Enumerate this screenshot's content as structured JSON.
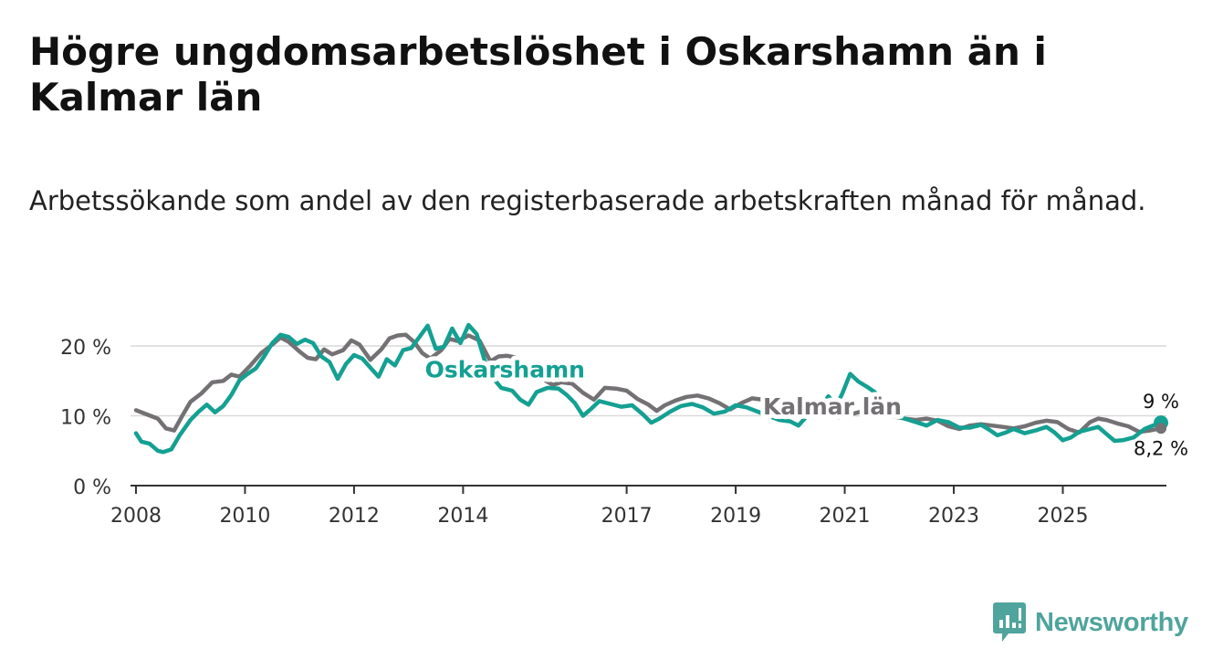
{
  "title": "Högre ungdomsarbetslöshet i Oskarshamn än i Kalmar län",
  "subtitle": "Arbetssökande som andel av den registerbaserade arbetskraften månad för månad.",
  "brand": {
    "name": "Newsworthy",
    "color": "#4fa49d",
    "icon": "bar-chart-logo-icon"
  },
  "chart_data": {
    "type": "line",
    "title": "Högre ungdomsarbetslöshet i Oskarshamn än i Kalmar län",
    "xlabel": "",
    "ylabel": "",
    "xlim": [
      2007.9,
      2026.9
    ],
    "ylim": [
      0,
      20
    ],
    "grid": true,
    "x_ticks": [
      {
        "value": 2008,
        "label": "2008"
      },
      {
        "value": 2010,
        "label": "2010"
      },
      {
        "value": 2012,
        "label": "2012"
      },
      {
        "value": 2014,
        "label": "2014"
      },
      {
        "value": 2017,
        "label": "2017"
      },
      {
        "value": 2019,
        "label": "2019"
      },
      {
        "value": 2021,
        "label": "2021"
      },
      {
        "value": 2023,
        "label": "2023"
      },
      {
        "value": 2025,
        "label": "2025"
      }
    ],
    "y_ticks": [
      {
        "value": 0,
        "label": "0 %"
      },
      {
        "value": 10,
        "label": "10 %"
      },
      {
        "value": 20,
        "label": "20 %"
      }
    ],
    "series": [
      {
        "name": "Kalmar län",
        "label": "Kalmar län",
        "color": "#747174",
        "end_label": "8,2 %",
        "points": [
          [
            2008.0,
            10.8
          ],
          [
            2008.2,
            10.2
          ],
          [
            2008.4,
            9.6
          ],
          [
            2008.55,
            8.2
          ],
          [
            2008.7,
            7.9
          ],
          [
            2008.85,
            10.0
          ],
          [
            2009.0,
            12.0
          ],
          [
            2009.2,
            13.2
          ],
          [
            2009.4,
            14.8
          ],
          [
            2009.6,
            15.0
          ],
          [
            2009.75,
            15.9
          ],
          [
            2009.9,
            15.6
          ],
          [
            2010.1,
            17.2
          ],
          [
            2010.3,
            19.0
          ],
          [
            2010.5,
            20.2
          ],
          [
            2010.65,
            21.2
          ],
          [
            2010.8,
            20.6
          ],
          [
            2011.0,
            19.2
          ],
          [
            2011.15,
            18.3
          ],
          [
            2011.3,
            18.1
          ],
          [
            2011.45,
            19.5
          ],
          [
            2011.6,
            18.8
          ],
          [
            2011.8,
            19.4
          ],
          [
            2011.95,
            20.8
          ],
          [
            2012.1,
            20.2
          ],
          [
            2012.3,
            18.0
          ],
          [
            2012.5,
            19.5
          ],
          [
            2012.65,
            21.1
          ],
          [
            2012.8,
            21.5
          ],
          [
            2012.95,
            21.6
          ],
          [
            2013.1,
            20.6
          ],
          [
            2013.25,
            19.0
          ],
          [
            2013.4,
            18.2
          ],
          [
            2013.6,
            19.4
          ],
          [
            2013.75,
            21.0
          ],
          [
            2013.9,
            20.7
          ],
          [
            2014.1,
            21.5
          ],
          [
            2014.3,
            20.8
          ],
          [
            2014.5,
            17.8
          ],
          [
            2014.65,
            18.5
          ],
          [
            2014.8,
            18.6
          ],
          [
            2015.0,
            18.3
          ],
          [
            2015.2,
            16.5
          ],
          [
            2015.35,
            15.6
          ],
          [
            2015.5,
            15.1
          ],
          [
            2015.65,
            14.4
          ],
          [
            2015.8,
            14.8
          ],
          [
            2016.0,
            14.6
          ],
          [
            2016.2,
            13.3
          ],
          [
            2016.4,
            12.3
          ],
          [
            2016.6,
            14.0
          ],
          [
            2016.8,
            13.9
          ],
          [
            2017.0,
            13.6
          ],
          [
            2017.2,
            12.4
          ],
          [
            2017.4,
            11.6
          ],
          [
            2017.55,
            10.7
          ],
          [
            2017.7,
            11.5
          ],
          [
            2017.9,
            12.2
          ],
          [
            2018.1,
            12.7
          ],
          [
            2018.3,
            12.9
          ],
          [
            2018.5,
            12.5
          ],
          [
            2018.7,
            11.8
          ],
          [
            2018.9,
            10.9
          ],
          [
            2019.1,
            11.8
          ],
          [
            2019.3,
            12.5
          ],
          [
            2019.5,
            12.3
          ],
          [
            2019.7,
            11.3
          ],
          [
            2019.9,
            10.6
          ],
          [
            2020.1,
            10.3
          ],
          [
            2020.3,
            10.0
          ],
          [
            2020.5,
            9.9
          ],
          [
            2020.7,
            10.1
          ],
          [
            2020.9,
            9.8
          ],
          [
            2021.1,
            10.2
          ],
          [
            2021.3,
            10.6
          ],
          [
            2021.5,
            11.0
          ],
          [
            2021.7,
            10.3
          ],
          [
            2021.9,
            9.9
          ],
          [
            2022.1,
            9.6
          ],
          [
            2022.3,
            9.4
          ],
          [
            2022.5,
            9.6
          ],
          [
            2022.7,
            9.3
          ],
          [
            2022.9,
            8.5
          ],
          [
            2023.1,
            8.1
          ],
          [
            2023.3,
            8.6
          ],
          [
            2023.5,
            8.8
          ],
          [
            2023.7,
            8.6
          ],
          [
            2023.9,
            8.4
          ],
          [
            2024.1,
            8.2
          ],
          [
            2024.3,
            8.5
          ],
          [
            2024.5,
            9.0
          ],
          [
            2024.7,
            9.3
          ],
          [
            2024.9,
            9.1
          ],
          [
            2025.1,
            8.1
          ],
          [
            2025.3,
            7.6
          ],
          [
            2025.5,
            9.1
          ],
          [
            2025.65,
            9.6
          ],
          [
            2025.8,
            9.4
          ],
          [
            2026.0,
            8.9
          ],
          [
            2026.2,
            8.5
          ],
          [
            2026.4,
            7.7
          ],
          [
            2026.6,
            7.9
          ],
          [
            2026.8,
            8.2
          ]
        ]
      },
      {
        "name": "Oskarshamn",
        "label": "Oskarshamn",
        "color": "#14a092",
        "end_label": "9 %",
        "points": [
          [
            2008.0,
            7.5
          ],
          [
            2008.1,
            6.3
          ],
          [
            2008.25,
            6.0
          ],
          [
            2008.4,
            5.0
          ],
          [
            2008.5,
            4.8
          ],
          [
            2008.65,
            5.2
          ],
          [
            2008.8,
            7.2
          ],
          [
            2009.0,
            9.4
          ],
          [
            2009.15,
            10.6
          ],
          [
            2009.3,
            11.6
          ],
          [
            2009.45,
            10.5
          ],
          [
            2009.6,
            11.4
          ],
          [
            2009.75,
            13.0
          ],
          [
            2009.9,
            15.1
          ],
          [
            2010.05,
            16.0
          ],
          [
            2010.2,
            16.8
          ],
          [
            2010.35,
            18.5
          ],
          [
            2010.5,
            20.4
          ],
          [
            2010.65,
            21.6
          ],
          [
            2010.8,
            21.3
          ],
          [
            2010.95,
            20.3
          ],
          [
            2011.1,
            20.9
          ],
          [
            2011.25,
            20.4
          ],
          [
            2011.4,
            18.5
          ],
          [
            2011.55,
            17.7
          ],
          [
            2011.7,
            15.3
          ],
          [
            2011.85,
            17.4
          ],
          [
            2012.0,
            18.7
          ],
          [
            2012.15,
            18.2
          ],
          [
            2012.3,
            16.9
          ],
          [
            2012.45,
            15.6
          ],
          [
            2012.6,
            18.1
          ],
          [
            2012.75,
            17.2
          ],
          [
            2012.9,
            19.4
          ],
          [
            2013.05,
            19.7
          ],
          [
            2013.2,
            21.3
          ],
          [
            2013.35,
            22.9
          ],
          [
            2013.5,
            19.6
          ],
          [
            2013.65,
            19.9
          ],
          [
            2013.8,
            22.5
          ],
          [
            2013.95,
            20.4
          ],
          [
            2014.1,
            23.0
          ],
          [
            2014.25,
            21.7
          ],
          [
            2014.4,
            17.8
          ],
          [
            2014.55,
            15.4
          ],
          [
            2014.7,
            14.0
          ],
          [
            2014.9,
            13.6
          ],
          [
            2015.05,
            12.3
          ],
          [
            2015.2,
            11.6
          ],
          [
            2015.35,
            13.4
          ],
          [
            2015.55,
            14.0
          ],
          [
            2015.75,
            13.9
          ],
          [
            2015.9,
            13.0
          ],
          [
            2016.05,
            11.8
          ],
          [
            2016.2,
            10.0
          ],
          [
            2016.35,
            11.0
          ],
          [
            2016.5,
            12.1
          ],
          [
            2016.7,
            11.7
          ],
          [
            2016.9,
            11.3
          ],
          [
            2017.1,
            11.5
          ],
          [
            2017.3,
            10.2
          ],
          [
            2017.45,
            9.0
          ],
          [
            2017.6,
            9.6
          ],
          [
            2017.8,
            10.6
          ],
          [
            2018.0,
            11.4
          ],
          [
            2018.2,
            11.7
          ],
          [
            2018.4,
            11.2
          ],
          [
            2018.6,
            10.3
          ],
          [
            2018.8,
            10.6
          ],
          [
            2019.0,
            11.5
          ],
          [
            2019.2,
            11.2
          ],
          [
            2019.4,
            10.6
          ],
          [
            2019.6,
            10.0
          ],
          [
            2019.8,
            9.4
          ],
          [
            2020.0,
            9.2
          ],
          [
            2020.15,
            8.6
          ],
          [
            2020.3,
            9.9
          ],
          [
            2020.5,
            10.5
          ],
          [
            2020.7,
            12.8
          ],
          [
            2020.85,
            11.5
          ],
          [
            2020.95,
            13.1
          ],
          [
            2021.1,
            16.0
          ],
          [
            2021.25,
            14.9
          ],
          [
            2021.4,
            14.2
          ],
          [
            2021.55,
            13.4
          ],
          [
            2021.7,
            11.6
          ],
          [
            2021.9,
            10.1
          ],
          [
            2022.1,
            9.6
          ],
          [
            2022.3,
            9.1
          ],
          [
            2022.5,
            8.6
          ],
          [
            2022.7,
            9.4
          ],
          [
            2022.9,
            9.1
          ],
          [
            2023.1,
            8.3
          ],
          [
            2023.3,
            8.3
          ],
          [
            2023.5,
            8.7
          ],
          [
            2023.65,
            8.0
          ],
          [
            2023.8,
            7.2
          ],
          [
            2023.95,
            7.6
          ],
          [
            2024.1,
            8.1
          ],
          [
            2024.3,
            7.5
          ],
          [
            2024.5,
            7.9
          ],
          [
            2024.7,
            8.4
          ],
          [
            2024.85,
            7.6
          ],
          [
            2025.0,
            6.5
          ],
          [
            2025.15,
            6.9
          ],
          [
            2025.3,
            7.7
          ],
          [
            2025.5,
            8.1
          ],
          [
            2025.65,
            8.4
          ],
          [
            2025.8,
            7.4
          ],
          [
            2025.95,
            6.4
          ],
          [
            2026.1,
            6.5
          ],
          [
            2026.3,
            6.9
          ],
          [
            2026.5,
            8.1
          ],
          [
            2026.65,
            8.6
          ],
          [
            2026.8,
            9.0
          ]
        ]
      }
    ]
  }
}
